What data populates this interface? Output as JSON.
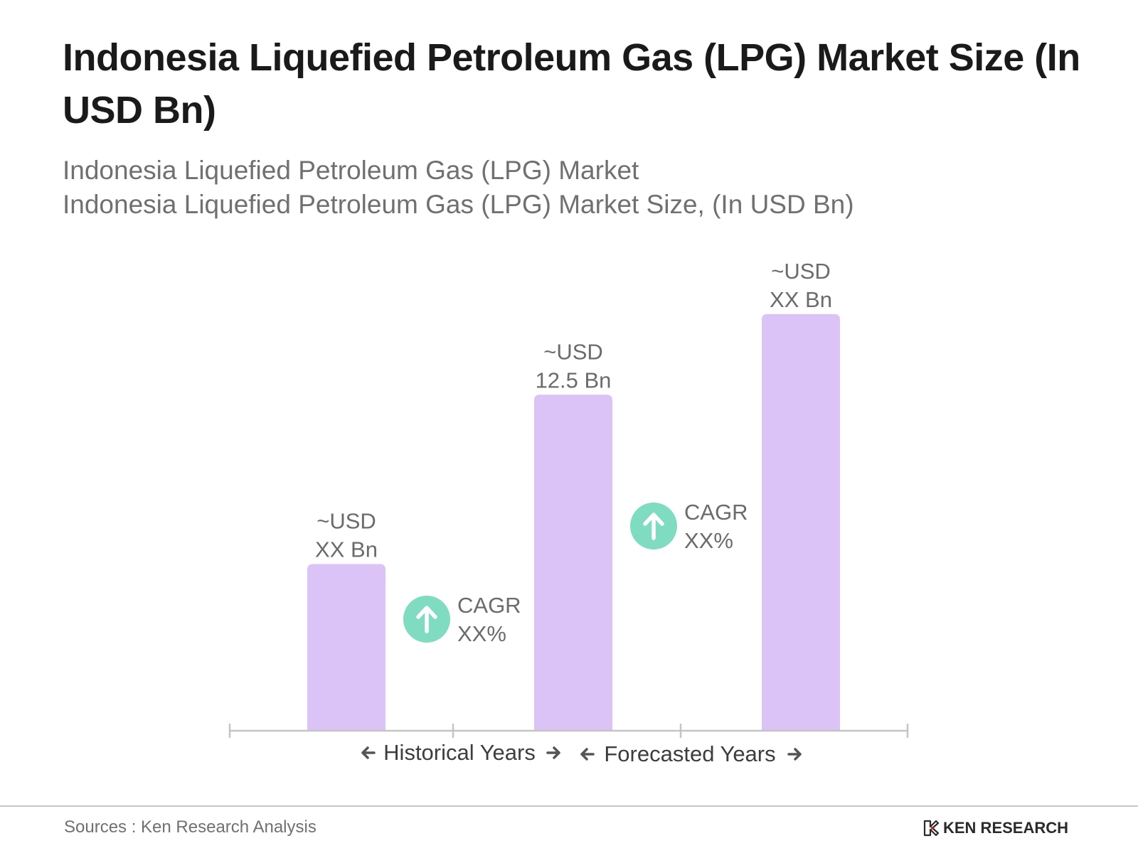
{
  "header": {
    "title": "Indonesia Liquefied Petroleum Gas (LPG) Market Size (In USD Bn)",
    "subtitle_line1": "Indonesia Liquefied Petroleum Gas (LPG) Market",
    "subtitle_line2": "Indonesia Liquefied Petroleum Gas (LPG) Market Size, (In USD Bn)"
  },
  "chart_data": {
    "type": "bar",
    "categories": [
      "",
      "",
      ""
    ],
    "values": [
      6.2,
      12.5,
      15.5
    ],
    "value_labels": [
      [
        "~USD",
        "XX Bn"
      ],
      [
        "~USD",
        "12.5 Bn"
      ],
      [
        "~USD",
        "XX Bn"
      ]
    ],
    "ylim": [
      0,
      16.5
    ],
    "grid": false,
    "bar_color": "#dcc3f7",
    "cagr_color": "#7fdcc0",
    "cagr_annotations": [
      {
        "line1": "CAGR",
        "line2": "XX%",
        "between": [
          0,
          1
        ]
      },
      {
        "line1": "CAGR",
        "line2": "XX%",
        "between": [
          1,
          2
        ]
      }
    ],
    "period_labels": [
      {
        "label": "Historical Years",
        "span": [
          0,
          1
        ]
      },
      {
        "label": "Forecasted Years",
        "span": [
          1,
          2
        ]
      }
    ]
  },
  "footer": {
    "source": "Sources : Ken Research Analysis",
    "brand": "KEN RESEARCH"
  }
}
